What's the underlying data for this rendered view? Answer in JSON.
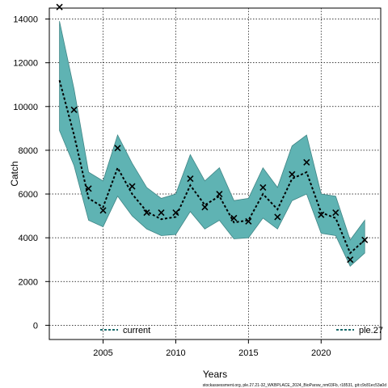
{
  "chart_data": {
    "type": "line",
    "xlabel": "Years",
    "ylabel": "Catch",
    "xlim": [
      2001.3,
      2024.1
    ],
    "ylim": [
      -650,
      14500
    ],
    "x_ticks": [
      2005,
      2010,
      2015,
      2020
    ],
    "y_ticks": [
      0,
      2000,
      4000,
      6000,
      8000,
      10000,
      12000,
      14000
    ],
    "grid": true,
    "years": [
      2002,
      2003,
      2004,
      2005,
      2006,
      2007,
      2008,
      2009,
      2010,
      2011,
      2012,
      2013,
      2014,
      2015,
      2016,
      2017,
      2018,
      2019,
      2020,
      2021,
      2022,
      2023
    ],
    "series": [
      {
        "name": "current",
        "style": "dashed-line",
        "values": [
          11200,
          8700,
          5800,
          5400,
          7200,
          6000,
          5200,
          4850,
          4950,
          6400,
          5500,
          5900,
          4700,
          4800,
          6000,
          5300,
          6700,
          7000,
          5150,
          4900,
          3300,
          3900
        ]
      },
      {
        "name": "band_upper",
        "values": [
          13900,
          10800,
          7000,
          6600,
          8700,
          7400,
          6300,
          5800,
          6000,
          7800,
          6600,
          7200,
          5700,
          5800,
          7200,
          6300,
          8200,
          8700,
          6000,
          5900,
          3900,
          4800
        ]
      },
      {
        "name": "band_lower",
        "values": [
          8900,
          7300,
          4800,
          4500,
          5900,
          5000,
          4400,
          4100,
          4150,
          5200,
          4400,
          4800,
          3950,
          4000,
          4900,
          4400,
          5700,
          6000,
          4200,
          4100,
          2700,
          3300
        ]
      },
      {
        "name": "ple.27",
        "style": "x-markers",
        "values": [
          14550,
          9850,
          6250,
          5250,
          8100,
          6350,
          5150,
          5150,
          5150,
          6700,
          5400,
          6000,
          4900,
          4750,
          6300,
          4950,
          6900,
          7450,
          5050,
          5150,
          3000,
          3900
        ]
      }
    ],
    "legend": [
      {
        "label": "current",
        "position": "bottom-left"
      },
      {
        "label": "ple.27",
        "position": "bottom-right"
      }
    ],
    "colors": {
      "band": "#5fb3b3",
      "band_edge": "#3f8585",
      "line": "#000000",
      "legend_line": "#1a6b6b",
      "grid": "#000000"
    }
  },
  "caption": "stockassessment.org, ple.27.21-32_WKBPLACE_2024_BioParsw_nm03Fb, r18531, git:c9c81ec53a0d"
}
